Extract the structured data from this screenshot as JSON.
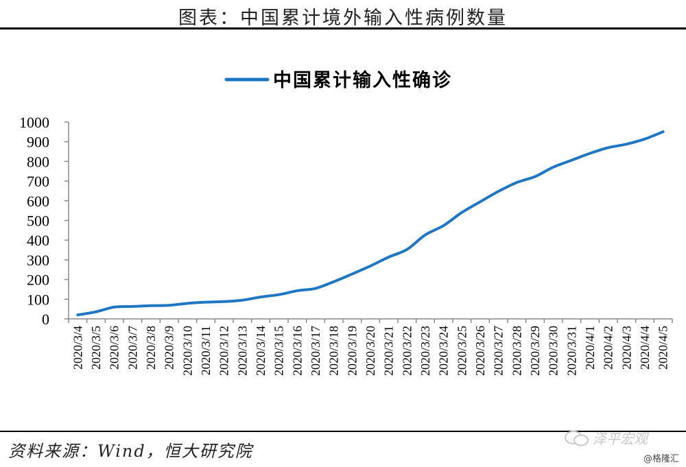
{
  "page": {
    "title": "图表：中国累计境外输入性病例数量",
    "source": "资料来源：Wind，恒大研究院",
    "watermark": "泽平宏观",
    "credit": "@格隆汇"
  },
  "chart_data": {
    "type": "line",
    "legend_position": "top-center",
    "grid": false,
    "ylim": [
      0,
      1000
    ],
    "yticks": [
      0,
      100,
      200,
      300,
      400,
      500,
      600,
      700,
      800,
      900,
      1000
    ],
    "categories": [
      "2020/3/4",
      "2020/3/5",
      "2020/3/6",
      "2020/3/7",
      "2020/3/8",
      "2020/3/9",
      "2020/3/10",
      "2020/3/11",
      "2020/3/12",
      "2020/3/13",
      "2020/3/14",
      "2020/3/15",
      "2020/3/16",
      "2020/3/17",
      "2020/3/18",
      "2020/3/19",
      "2020/3/20",
      "2020/3/21",
      "2020/3/22",
      "2020/3/23",
      "2020/3/24",
      "2020/3/25",
      "2020/3/26",
      "2020/3/27",
      "2020/3/28",
      "2020/3/29",
      "2020/3/30",
      "2020/3/31",
      "2020/4/1",
      "2020/4/2",
      "2020/4/3",
      "2020/4/4",
      "2020/4/5"
    ],
    "series": [
      {
        "name": "中国累计输入性确诊",
        "color": "#1f77c4",
        "values": [
          20,
          36,
          60,
          63,
          67,
          69,
          79,
          85,
          88,
          95,
          111,
          123,
          143,
          155,
          189,
          228,
          269,
          314,
          353,
          427,
          474,
          541,
          595,
          648,
          693,
          723,
          771,
          806,
          841,
          870,
          888,
          914,
          951
        ]
      }
    ]
  }
}
